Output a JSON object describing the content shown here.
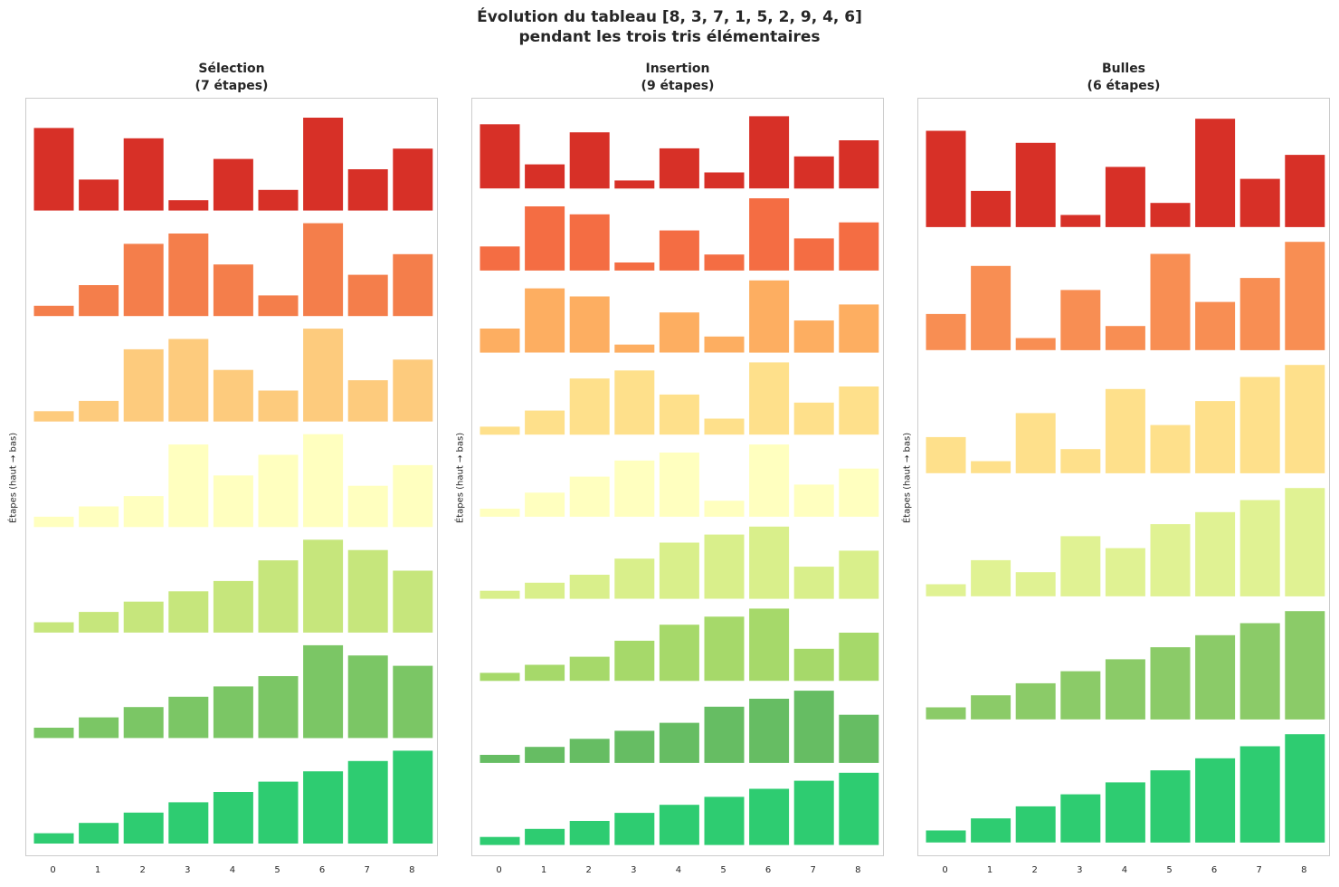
{
  "title_lines": [
    "Évolution du tableau [8, 3, 7, 1, 5, 2, 9, 4, 6]",
    "pendant les trois tris élémentaires"
  ],
  "ylabel": "Étapes (haut → bas)",
  "chart_data": [
    {
      "type": "bar",
      "title": "Sélection",
      "subtitle": "(7 étapes)",
      "categories": [
        "0",
        "1",
        "2",
        "3",
        "4",
        "5",
        "6",
        "7",
        "8"
      ],
      "xlabel": "",
      "ylabel": "Étapes (haut → bas)",
      "colors": [
        "#d73027",
        "#f47e4b",
        "#fdcb7d",
        "#ffffbf",
        "#c6e67c",
        "#7bc665",
        "#2ecc71"
      ],
      "steps": [
        [
          8,
          3,
          7,
          1,
          5,
          2,
          9,
          4,
          6
        ],
        [
          1,
          3,
          7,
          8,
          5,
          2,
          9,
          4,
          6
        ],
        [
          1,
          2,
          7,
          8,
          5,
          3,
          9,
          4,
          6
        ],
        [
          1,
          2,
          3,
          8,
          5,
          7,
          9,
          4,
          6
        ],
        [
          1,
          2,
          3,
          4,
          5,
          7,
          9,
          8,
          6
        ],
        [
          1,
          2,
          3,
          4,
          5,
          6,
          9,
          8,
          7
        ],
        [
          1,
          2,
          3,
          4,
          5,
          6,
          7,
          8,
          9
        ]
      ]
    },
    {
      "type": "bar",
      "title": "Insertion",
      "subtitle": "(9 étapes)",
      "categories": [
        "0",
        "1",
        "2",
        "3",
        "4",
        "5",
        "6",
        "7",
        "8"
      ],
      "xlabel": "",
      "ylabel": "Étapes (haut → bas)",
      "colors": [
        "#d73027",
        "#f46d43",
        "#fdae61",
        "#fee08b",
        "#ffffbf",
        "#d9ef8b",
        "#a6d96a",
        "#66bd63",
        "#2ecc71"
      ],
      "steps": [
        [
          8,
          3,
          7,
          1,
          5,
          2,
          9,
          4,
          6
        ],
        [
          3,
          8,
          7,
          1,
          5,
          2,
          9,
          4,
          6
        ],
        [
          3,
          8,
          7,
          1,
          5,
          2,
          9,
          4,
          6
        ],
        [
          1,
          3,
          7,
          8,
          5,
          2,
          9,
          4,
          6
        ],
        [
          1,
          3,
          5,
          7,
          8,
          2,
          9,
          4,
          6
        ],
        [
          1,
          2,
          3,
          5,
          7,
          8,
          9,
          4,
          6
        ],
        [
          1,
          2,
          3,
          5,
          7,
          8,
          9,
          4,
          6
        ],
        [
          1,
          2,
          3,
          4,
          5,
          7,
          8,
          9,
          6
        ],
        [
          1,
          2,
          3,
          4,
          5,
          6,
          7,
          8,
          9
        ]
      ]
    },
    {
      "type": "bar",
      "title": "Bulles",
      "subtitle": "(6 étapes)",
      "categories": [
        "0",
        "1",
        "2",
        "3",
        "4",
        "5",
        "6",
        "7",
        "8"
      ],
      "xlabel": "",
      "ylabel": "Étapes (haut → bas)",
      "colors": [
        "#d73027",
        "#f88e53",
        "#fee08b",
        "#e0f293",
        "#8bcb68",
        "#2ecc71"
      ],
      "steps": [
        [
          8,
          3,
          7,
          1,
          5,
          2,
          9,
          4,
          6
        ],
        [
          3,
          7,
          1,
          5,
          2,
          8,
          4,
          6,
          9
        ],
        [
          3,
          1,
          5,
          2,
          7,
          4,
          6,
          8,
          9
        ],
        [
          1,
          3,
          2,
          5,
          4,
          6,
          7,
          8,
          9
        ],
        [
          1,
          2,
          3,
          4,
          5,
          6,
          7,
          8,
          9
        ],
        [
          1,
          2,
          3,
          4,
          5,
          6,
          7,
          8,
          9
        ]
      ]
    }
  ]
}
